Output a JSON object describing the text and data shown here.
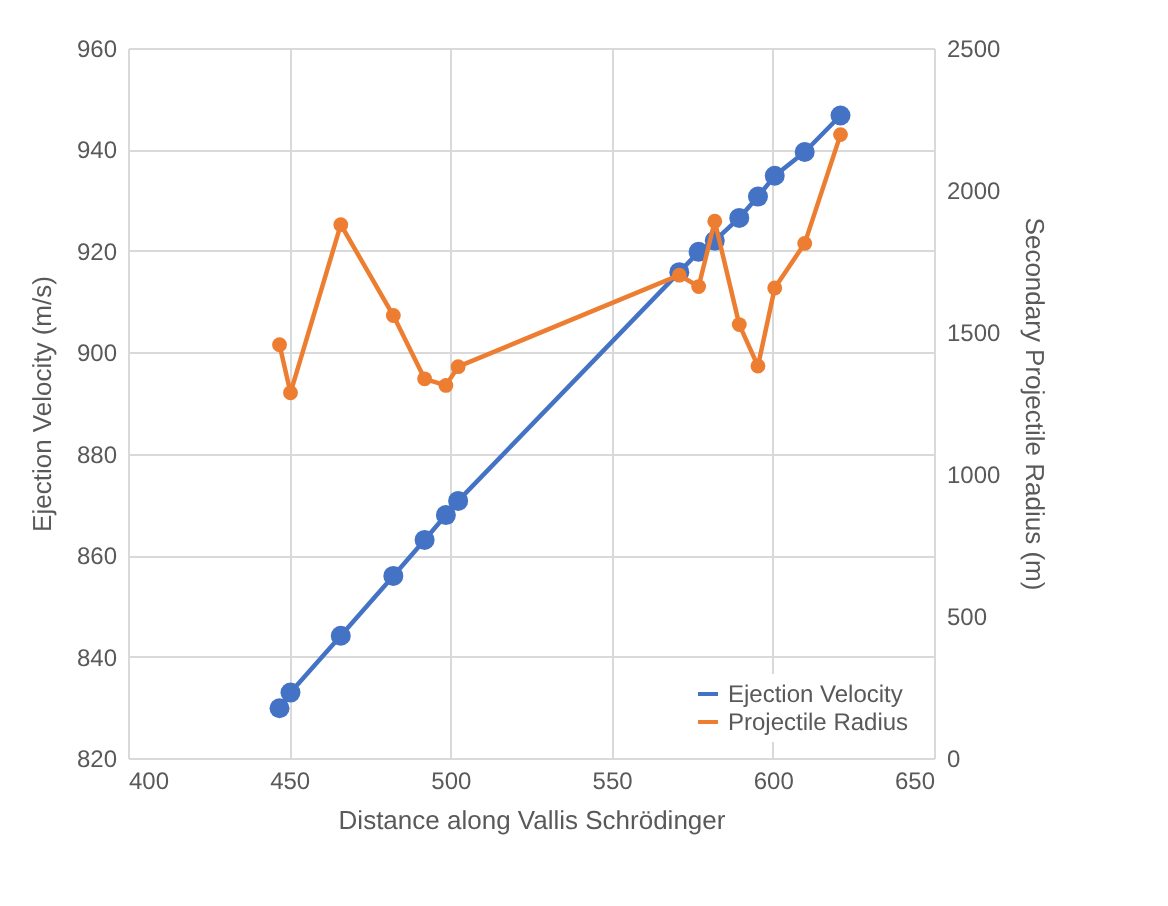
{
  "chart_data": {
    "type": "line",
    "xlabel": "Distance along Vallis Schrödinger",
    "ylabel": "Ejection Velocity (m/s)",
    "y2label": "Secondary Projectile Radius (m)",
    "x": [
      447,
      450.4,
      466,
      482.3,
      492,
      498.6,
      502.4,
      571,
      577,
      582,
      589.6,
      595.4,
      600.6,
      609.9,
      621
    ],
    "series": [
      {
        "name": "Ejection Velocity",
        "color": "#4472c4",
        "values": [
          829.8,
          832.9,
          844.1,
          855.9,
          863,
          867.9,
          870.7,
          915.8,
          919.8,
          922,
          926.5,
          930.7,
          934.8,
          939.5,
          946.7
        ]
      },
      {
        "name": "Projectile Radius",
        "color": "#ed7d31",
        "axis": "y2",
        "values": [
          1455,
          1286,
          1878,
          1558,
          1335,
          1312,
          1378,
          1700,
          1660,
          1890,
          1526,
          1380,
          1655,
          1812,
          2195
        ]
      }
    ],
    "xlim": [
      400,
      650
    ],
    "xticks": [
      400,
      450,
      500,
      550,
      600,
      650
    ],
    "ylim": [
      820,
      960
    ],
    "yticks": [
      820,
      840,
      860,
      880,
      900,
      920,
      940,
      960
    ],
    "y2lim": [
      0,
      2500
    ],
    "y2ticks": [
      0,
      500,
      1000,
      1500,
      2000,
      2500
    ],
    "grid": true,
    "legend": "bottom right",
    "marker": "circle",
    "line_style": "solid"
  }
}
